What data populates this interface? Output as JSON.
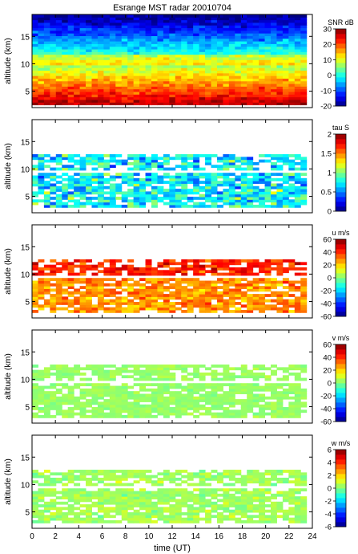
{
  "chart_data": {
    "type": "heatmap",
    "title": "Esrange MST radar 20010704",
    "xlabel": "time (UT)",
    "xlim": [
      0,
      24
    ],
    "xticks": [
      0,
      2,
      4,
      6,
      8,
      10,
      12,
      14,
      16,
      18,
      20,
      22,
      24
    ],
    "panels": [
      {
        "name": "snr",
        "ylabel": "altitude (km)",
        "ylim": [
          2,
          19
        ],
        "yticks": [
          5,
          10,
          15
        ],
        "colorbar_label": "SNR dB",
        "colorbar_range": [
          -20,
          30
        ],
        "colorbar_ticks": [
          -20,
          -10,
          0,
          10,
          20,
          30
        ],
        "colormap": "jet",
        "coverage": "full"
      },
      {
        "name": "tau",
        "ylabel": "altitude (km)",
        "ylim": [
          2,
          19
        ],
        "yticks": [
          5,
          10,
          15
        ],
        "colorbar_label": "tau S",
        "colorbar_range": [
          0,
          2
        ],
        "colorbar_ticks": [
          0,
          0.5,
          1,
          1.5,
          2
        ],
        "colormap": "jet",
        "coverage": "partial"
      },
      {
        "name": "u",
        "ylabel": "altitude (km)",
        "ylim": [
          2,
          19
        ],
        "yticks": [
          5,
          10,
          15
        ],
        "colorbar_label": "u m/s",
        "colorbar_range": [
          -60,
          60
        ],
        "colorbar_ticks": [
          -60,
          -40,
          -20,
          0,
          20,
          40,
          60
        ],
        "colormap": "jet",
        "coverage": "partial"
      },
      {
        "name": "v",
        "ylabel": "altitude (km)",
        "ylim": [
          2,
          19
        ],
        "yticks": [
          5,
          10,
          15
        ],
        "colorbar_label": "v m/s",
        "colorbar_range": [
          -60,
          60
        ],
        "colorbar_ticks": [
          -60,
          -40,
          -20,
          0,
          20,
          40,
          60
        ],
        "colormap": "jet",
        "coverage": "partial"
      },
      {
        "name": "w",
        "ylabel": "altitude (km)",
        "ylim": [
          2,
          19
        ],
        "yticks": [
          5,
          10,
          15
        ],
        "colorbar_label": "w m/s",
        "colorbar_range": [
          -6,
          6
        ],
        "colorbar_ticks": [
          -6,
          -4,
          -2,
          0,
          2,
          4,
          6
        ],
        "colormap": "jet",
        "coverage": "partial"
      }
    ]
  }
}
